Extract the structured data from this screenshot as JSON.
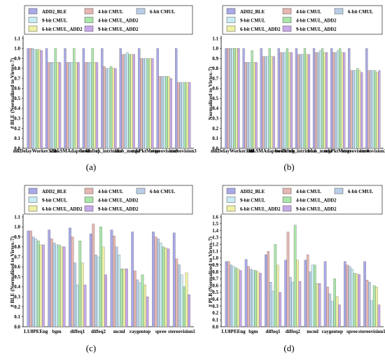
{
  "figure": {
    "captions": [
      "(a)",
      "(b)",
      "(c)",
      "(d)"
    ]
  },
  "series_colors": {
    "ADD2_BLE": "#a9a9e8",
    "4-bit CMUL": "#e6b7b2",
    "6-bit CMUL": "#b9cfe8",
    "9-bit CMUL": "#c9ecf2",
    "4-bit CMUL_ADD2": "#a9e6a9",
    "6-bit CMUL_ADD2": "#eef0a4",
    "9-bit CMUL_ADD2": "#c8a8e8"
  },
  "chart_data": [
    {
      "type": "bar",
      "panel": "(a)",
      "ylabel": "# BLE (Normalized to Virtex-7)",
      "ylim": [
        0.0,
        1.1
      ],
      "yticks": [
        "0.0",
        "0.1",
        "0.2",
        "0.3",
        "0.4",
        "0.5",
        "0.6",
        "0.7",
        "0.8",
        "0.9",
        "1.0",
        "1.1"
      ],
      "legend_rows": [
        [
          "ADD2_BLE",
          "4-bit CMUL",
          "6-bit CMUL"
        ],
        [
          "9-bit CMUL",
          "4-bit CMUL_ADD2"
        ],
        [
          "6-bit CMUL_ADD2",
          "9-bit CMUL_ADD2"
        ]
      ],
      "categories": [
        "mkDelayWorker32B",
        "sha",
        "mkSMAdapter4B",
        "boundtop",
        "ch_intrinsics",
        "blob_merge",
        "mkPktMerge",
        "stereovision0",
        "stereovision3"
      ],
      "series": [
        {
          "name": "ADD2_BLE",
          "values": [
            1.0,
            1.0,
            1.0,
            1.0,
            1.0,
            1.0,
            1.0,
            1.0,
            1.0
          ]
        },
        {
          "name": "4-bit CMUL",
          "values": [
            1.0,
            0.86,
            0.86,
            0.86,
            0.82,
            0.94,
            0.9,
            0.72,
            0.66
          ]
        },
        {
          "name": "6-bit CMUL",
          "values": [
            1.0,
            0.86,
            0.86,
            0.86,
            0.8,
            0.94,
            0.9,
            0.72,
            0.66
          ]
        },
        {
          "name": "9-bit CMUL",
          "values": [
            0.99,
            0.86,
            0.86,
            0.86,
            0.8,
            0.96,
            0.9,
            0.72,
            0.66
          ]
        },
        {
          "name": "4-bit CMUL_ADD2",
          "values": [
            0.99,
            1.0,
            1.0,
            1.0,
            0.82,
            0.94,
            0.9,
            0.72,
            0.66
          ]
        },
        {
          "name": "6-bit CMUL_ADD2",
          "values": [
            0.99,
            0.86,
            0.86,
            0.86,
            0.8,
            0.94,
            0.9,
            0.72,
            0.66
          ]
        },
        {
          "name": "9-bit CMUL_ADD2",
          "values": [
            0.98,
            0.86,
            0.86,
            0.86,
            0.8,
            0.94,
            0.9,
            0.7,
            0.66
          ]
        }
      ]
    },
    {
      "type": "bar",
      "panel": "(b)",
      "ylabel": "Normalized to Virtex-7)",
      "ylim": [
        0.0,
        1.1
      ],
      "yticks": [
        "0.0",
        "0.1",
        "0.2",
        "0.3",
        "0.4",
        "0.5",
        "0.6",
        "0.7",
        "0.8",
        "0.9",
        "1.0",
        "1.1"
      ],
      "legend_rows": [
        [
          "ADD2_BLE",
          "4-bit CMUL",
          "6-bit CMUL"
        ],
        [
          "9-bit CMUL",
          "4-bit CMUL_ADD2"
        ],
        [
          "6-bit CMUL_ADD2",
          "9-bit CMUL_ADD2"
        ]
      ],
      "categories": [
        "mkDelayWorker32B",
        "sha",
        "mkSMAdapter4B",
        "boundtop",
        "ch_intrinsics",
        "blob_merge",
        "mkPktMerge",
        "stereovision0",
        "stereovision3"
      ],
      "series": [
        {
          "name": "ADD2_BLE",
          "values": [
            1.0,
            1.0,
            1.0,
            1.0,
            1.0,
            1.0,
            1.0,
            1.0,
            1.0
          ]
        },
        {
          "name": "4-bit CMUL",
          "values": [
            1.0,
            0.86,
            0.92,
            0.96,
            0.94,
            0.96,
            0.96,
            0.78,
            0.78
          ]
        },
        {
          "name": "6-bit CMUL",
          "values": [
            1.0,
            0.86,
            0.92,
            0.96,
            0.94,
            0.96,
            0.96,
            0.78,
            0.78
          ]
        },
        {
          "name": "9-bit CMUL",
          "values": [
            1.0,
            0.86,
            0.92,
            0.96,
            0.94,
            0.98,
            0.98,
            0.78,
            0.78
          ]
        },
        {
          "name": "4-bit CMUL_ADD2",
          "values": [
            1.0,
            0.98,
            1.0,
            1.0,
            1.0,
            1.0,
            1.0,
            0.8,
            0.78
          ]
        },
        {
          "name": "6-bit CMUL_ADD2",
          "values": [
            1.0,
            0.86,
            0.92,
            0.96,
            0.94,
            0.96,
            0.96,
            0.78,
            0.76
          ]
        },
        {
          "name": "9-bit CMUL_ADD2",
          "values": [
            1.0,
            0.86,
            0.92,
            0.96,
            0.94,
            0.96,
            0.96,
            0.76,
            0.78
          ]
        }
      ]
    },
    {
      "type": "bar",
      "panel": "(c)",
      "ylabel": "# BLE (Normalized to Virtex-7)",
      "ylim": [
        0.0,
        1.1
      ],
      "yticks": [
        "0.0",
        "0.1",
        "0.2",
        "0.3",
        "0.4",
        "0.5",
        "0.6",
        "0.7",
        "0.8",
        "0.9",
        "1.0",
        "1.1"
      ],
      "legend_rows": [
        [
          "ADD2_BLE",
          "4-bit CMUL",
          "6-bit CMUL"
        ],
        [
          "9-bit CMUL",
          "4-bit CMUL_ADD2"
        ],
        [
          "6-bit CMUL_ADD2",
          "9-bit CMUL_ADD2"
        ]
      ],
      "categories": [
        "LU8PEEng",
        "bgm",
        "diffeq1",
        "diffeq2",
        "mcml",
        "raygentop",
        "spree",
        "stereovision1"
      ],
      "series": [
        {
          "name": "ADD2_BLE",
          "values": [
            0.96,
            0.97,
            0.99,
            0.93,
            0.97,
            0.95,
            0.95,
            0.94
          ]
        },
        {
          "name": "4-bit CMUL",
          "values": [
            0.96,
            0.88,
            0.9,
            1.03,
            0.91,
            0.56,
            0.9,
            0.68
          ]
        },
        {
          "name": "6-bit CMUL",
          "values": [
            0.9,
            0.84,
            0.64,
            0.72,
            0.8,
            0.47,
            0.88,
            0.62
          ]
        },
        {
          "name": "9-bit CMUL",
          "values": [
            0.88,
            0.82,
            0.42,
            0.7,
            0.72,
            0.44,
            0.84,
            0.52
          ]
        },
        {
          "name": "4-bit CMUL_ADD2",
          "values": [
            0.86,
            0.82,
            0.86,
            1.0,
            0.58,
            0.52,
            0.8,
            0.4
          ]
        },
        {
          "name": "6-bit CMUL_ADD2",
          "values": [
            0.82,
            0.8,
            0.64,
            0.8,
            0.58,
            0.42,
            0.79,
            0.54
          ]
        },
        {
          "name": "9-bit CMUL_ADD2",
          "values": [
            0.82,
            0.8,
            0.42,
            0.52,
            0.58,
            0.3,
            0.78,
            0.32
          ]
        }
      ]
    },
    {
      "type": "bar",
      "panel": "(d)",
      "ylabel": "# PLB (Normalized to Virtex-7)",
      "ylim": [
        0.0,
        1.6
      ],
      "yticks": [
        "0.0",
        "0.1",
        "0.2",
        "0.3",
        "0.4",
        "0.5",
        "0.6",
        "0.7",
        "0.8",
        "0.9",
        "1.0",
        "1.1",
        "1.2",
        "1.3",
        "1.4",
        "1.5",
        "1.6"
      ],
      "legend_rows": [
        [
          "ADD2_BLE",
          "4-bit CMUL",
          "6-bit CMUL"
        ],
        [
          "9-bit CMUL",
          "4-bit CMUL_ADD2"
        ],
        [
          "6-bit CMUL_ADD2",
          "9-bit CMUL_ADD2"
        ]
      ],
      "categories": [
        "LU8PEEng",
        "bgm",
        "diffeq1",
        "diffeq2",
        "mcml",
        "raygentop",
        "spree",
        "stereovision1"
      ],
      "series": [
        {
          "name": "ADD2_BLE",
          "values": [
            0.95,
            0.98,
            1.05,
            0.97,
            0.97,
            0.95,
            0.95,
            0.95
          ]
        },
        {
          "name": "4-bit CMUL",
          "values": [
            0.95,
            0.88,
            1.1,
            1.38,
            1.05,
            0.58,
            0.9,
            0.68
          ]
        },
        {
          "name": "6-bit CMUL",
          "values": [
            0.9,
            0.84,
            0.65,
            0.72,
            0.8,
            0.48,
            0.88,
            0.65
          ]
        },
        {
          "name": "9-bit CMUL",
          "values": [
            0.88,
            0.82,
            0.52,
            0.65,
            0.9,
            0.37,
            0.84,
            0.38
          ]
        },
        {
          "name": "4-bit CMUL_ADD2",
          "values": [
            0.86,
            0.82,
            1.2,
            1.48,
            0.9,
            0.7,
            0.78,
            0.6
          ]
        },
        {
          "name": "6-bit CMUL_ADD2",
          "values": [
            0.84,
            0.8,
            0.9,
            0.97,
            0.63,
            0.44,
            0.77,
            0.58
          ]
        },
        {
          "name": "9-bit CMUL_ADD2",
          "values": [
            0.82,
            0.78,
            0.5,
            0.66,
            0.63,
            0.32,
            0.76,
            0.32
          ]
        }
      ]
    }
  ]
}
